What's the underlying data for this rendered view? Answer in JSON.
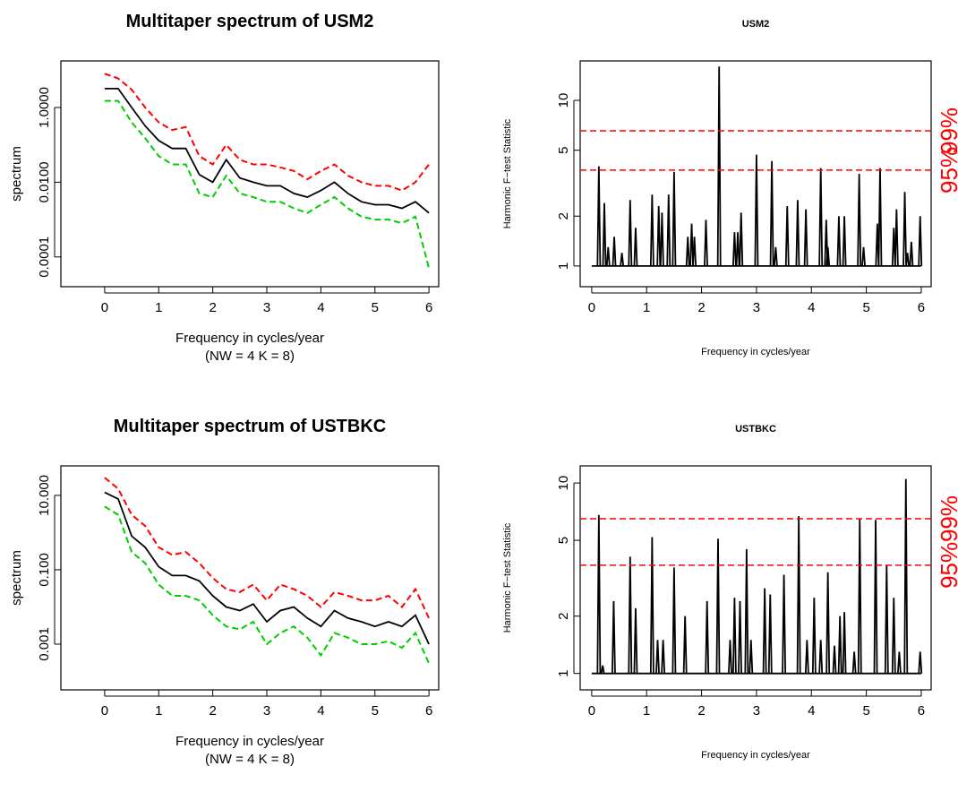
{
  "chart_data": [
    {
      "type": "line",
      "title": "Multitaper spectrum of USM2",
      "xlabel": "Frequency in cycles/year",
      "subtitle": "(NW = 4 K = 8)",
      "ylabel": "spectrum",
      "log_y": true,
      "x": [
        0,
        0.25,
        0.5,
        0.75,
        1,
        1.25,
        1.5,
        1.75,
        2,
        2.25,
        2.5,
        2.75,
        3,
        3.25,
        3.5,
        3.75,
        4,
        4.25,
        4.5,
        4.75,
        5,
        5.25,
        5.5,
        5.75,
        6
      ],
      "series": [
        {
          "color": "#ff0000",
          "linestyle": "dashed",
          "values": [
            8,
            6,
            3,
            1,
            0.4,
            0.25,
            0.3,
            0.05,
            0.03,
            0.1,
            0.04,
            0.03,
            0.03,
            0.025,
            0.02,
            0.012,
            0.02,
            0.03,
            0.015,
            0.01,
            0.008,
            0.008,
            0.006,
            0.01,
            0.03
          ]
        },
        {
          "color": "#00cd00",
          "linestyle": "dashed",
          "values": [
            1.5,
            1.5,
            0.4,
            0.15,
            0.05,
            0.03,
            0.03,
            0.005,
            0.004,
            0.015,
            0.005,
            0.004,
            0.003,
            0.003,
            0.002,
            0.0015,
            0.0025,
            0.004,
            0.002,
            0.0012,
            0.001,
            0.001,
            0.0008,
            0.0012,
            5e-05
          ]
        },
        {
          "color": "#000000",
          "linestyle": "solid",
          "values": [
            3.2,
            3.2,
            1.0,
            0.32,
            0.13,
            0.08,
            0.08,
            0.016,
            0.01,
            0.04,
            0.013,
            0.01,
            0.008,
            0.008,
            0.005,
            0.004,
            0.006,
            0.01,
            0.005,
            0.003,
            0.0025,
            0.0025,
            0.002,
            0.003,
            0.0015
          ]
        }
      ],
      "xlim": [
        -0.81,
        6.18
      ],
      "xticks": [
        0,
        1,
        2,
        3,
        4,
        5,
        6
      ],
      "ylim": [
        1.6e-05,
        17.6
      ],
      "yticks": [
        {
          "value": 1,
          "label": "1.0000"
        },
        {
          "value": 0.01,
          "label": "0.0100"
        },
        {
          "value": 0.0001,
          "label": "0.0001"
        }
      ]
    },
    {
      "type": "spike",
      "title": "USM2",
      "xlabel": "Frequency in cycles/year",
      "ylabel": "Harmonic F−test Statistic",
      "log_y": true,
      "x": [
        0.13,
        0.23,
        0.3,
        0.41,
        0.55,
        0.7,
        0.8,
        1.1,
        1.22,
        1.28,
        1.4,
        1.5,
        1.75,
        1.82,
        1.87,
        2.08,
        2.32,
        2.6,
        2.66,
        2.72,
        3.0,
        3.28,
        3.35,
        3.56,
        3.75,
        3.9,
        4.17,
        4.27,
        4.3,
        4.5,
        4.6,
        4.87,
        4.95,
        5.2,
        5.25,
        5.5,
        5.55,
        5.7,
        5.75,
        5.82,
        5.98
      ],
      "values": [
        4.0,
        2.4,
        1.3,
        1.5,
        1.2,
        2.5,
        1.7,
        2.7,
        2.3,
        2.1,
        2.7,
        3.7,
        1.5,
        1.8,
        1.5,
        1.9,
        16,
        1.6,
        1.6,
        2.1,
        4.7,
        4.3,
        1.3,
        2.3,
        2.5,
        2.2,
        3.9,
        1.9,
        1.3,
        2.0,
        2.0,
        3.6,
        1.3,
        1.8,
        3.9,
        1.7,
        2.2,
        2.8,
        1.2,
        1.4,
        2.0
      ],
      "color": "#000000",
      "hlines": [
        {
          "value": 6.55,
          "label": "99%"
        },
        {
          "value": 3.79,
          "label": "95%"
        }
      ],
      "hline_color": "#ff0000",
      "xlim": [
        -0.21,
        6.18
      ],
      "xticks": [
        0,
        1,
        2,
        3,
        4,
        5,
        6
      ],
      "ylim": [
        0.75,
        17.3
      ],
      "yticks": [
        1,
        2,
        5,
        10
      ]
    },
    {
      "type": "line",
      "title": "Multitaper spectrum of USTBKC",
      "xlabel": "Frequency in cycles/year",
      "subtitle": "(NW = 4 K = 8)",
      "ylabel": "spectrum",
      "log_y": true,
      "x": [
        0,
        0.25,
        0.5,
        0.75,
        1,
        1.25,
        1.5,
        1.75,
        2,
        2.25,
        2.5,
        2.75,
        3,
        3.25,
        3.5,
        3.75,
        4,
        4.25,
        4.5,
        4.75,
        5,
        5.25,
        5.5,
        5.75,
        6
      ],
      "series": [
        {
          "color": "#ff0000",
          "linestyle": "dashed",
          "values": [
            30,
            15,
            3,
            1.5,
            0.4,
            0.25,
            0.3,
            0.15,
            0.06,
            0.03,
            0.025,
            0.04,
            0.015,
            0.04,
            0.03,
            0.02,
            0.01,
            0.025,
            0.02,
            0.015,
            0.015,
            0.02,
            0.01,
            0.03,
            0.005
          ]
        },
        {
          "color": "#00cd00",
          "linestyle": "dashed",
          "values": [
            5,
            3,
            0.3,
            0.15,
            0.04,
            0.02,
            0.02,
            0.015,
            0.006,
            0.003,
            0.0025,
            0.004,
            0.001,
            0.002,
            0.003,
            0.0015,
            0.0005,
            0.002,
            0.0015,
            0.001,
            0.001,
            0.0012,
            0.0008,
            0.002,
            0.0003
          ]
        },
        {
          "color": "#000000",
          "linestyle": "solid",
          "values": [
            12,
            8,
            0.8,
            0.4,
            0.12,
            0.07,
            0.07,
            0.05,
            0.02,
            0.01,
            0.008,
            0.012,
            0.004,
            0.008,
            0.01,
            0.005,
            0.003,
            0.008,
            0.005,
            0.004,
            0.003,
            0.004,
            0.003,
            0.006,
            0.001
          ]
        }
      ],
      "xlim": [
        -0.81,
        6.18
      ],
      "xticks": [
        0,
        1,
        2,
        3,
        4,
        5,
        6
      ],
      "ylim": [
        5.9e-05,
        62
      ],
      "yticks": [
        {
          "value": 10,
          "label": "10.000"
        },
        {
          "value": 0.1,
          "label": "0.100"
        },
        {
          "value": 0.001,
          "label": "0.001"
        }
      ]
    },
    {
      "type": "spike",
      "title": "USTBKC",
      "xlabel": "Frequency in cycles/year",
      "ylabel": "Harmonic F−test Statistic",
      "log_y": true,
      "x": [
        0.13,
        0.2,
        0.4,
        0.7,
        0.8,
        1.1,
        1.2,
        1.3,
        1.5,
        1.7,
        2.1,
        2.3,
        2.52,
        2.6,
        2.7,
        2.82,
        2.9,
        3.15,
        3.25,
        3.5,
        3.77,
        3.92,
        4.05,
        4.17,
        4.3,
        4.42,
        4.52,
        4.6,
        4.78,
        4.88,
        5.17,
        5.37,
        5.5,
        5.6,
        5.72,
        5.98
      ],
      "values": [
        6.8,
        1.1,
        2.4,
        4.1,
        2.2,
        5.2,
        1.5,
        1.5,
        3.6,
        2.0,
        2.4,
        5.1,
        1.5,
        2.5,
        2.4,
        4.5,
        1.5,
        2.8,
        2.6,
        3.3,
        6.7,
        1.5,
        2.5,
        1.5,
        3.4,
        1.4,
        2.0,
        2.1,
        1.3,
        6.5,
        6.4,
        3.7,
        2.5,
        1.3,
        10.5,
        1.3
      ],
      "color": "#000000",
      "hlines": [
        {
          "value": 6.49,
          "label": "99%"
        },
        {
          "value": 3.7,
          "label": "95%"
        }
      ],
      "hline_color": "#ff0000",
      "xlim": [
        -0.21,
        6.18
      ],
      "xticks": [
        0,
        1,
        2,
        3,
        4,
        5,
        6
      ],
      "ylim": [
        0.82,
        12.3
      ],
      "yticks": [
        1,
        2,
        5,
        10
      ]
    }
  ]
}
